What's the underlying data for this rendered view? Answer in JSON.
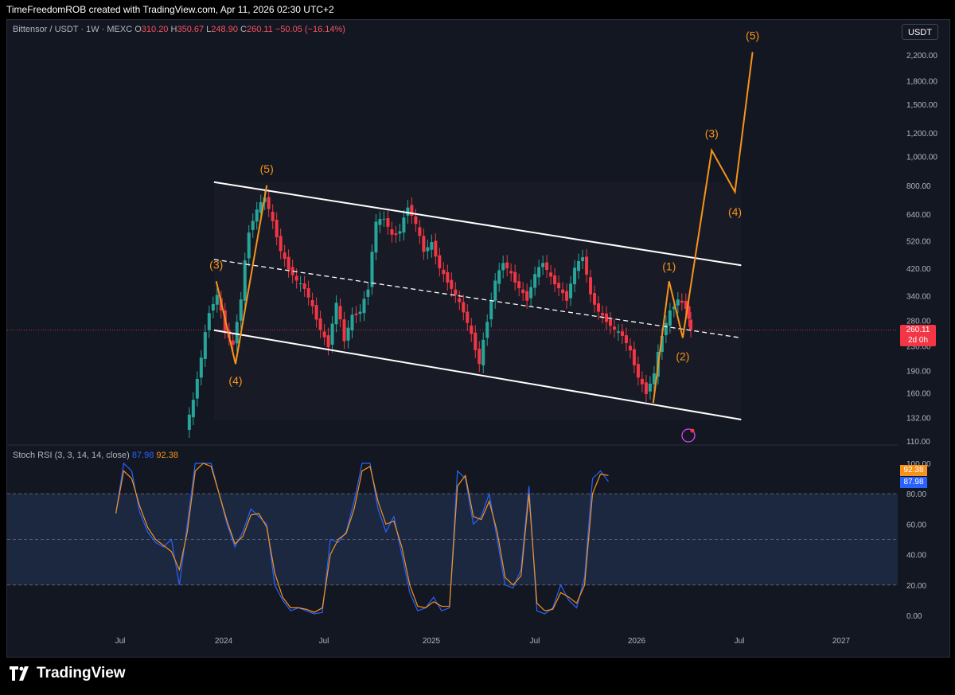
{
  "header": {
    "attribution": "TimeFreedomROB created with TradingView.com, Apr 11, 2026 02:30 UTC+2"
  },
  "legend": {
    "symbol": "Bittensor / USDT · 1W · MEXC",
    "open_label": "O",
    "open": "310.20",
    "high_label": "H",
    "high": "350.67",
    "low_label": "L",
    "low": "248.90",
    "close_label": "C",
    "close": "260.11",
    "change": "−50.05 (−16.14%)"
  },
  "currency": "USDT",
  "price_tag": {
    "price": "260.11",
    "countdown": "2d 0h"
  },
  "rsi": {
    "label": "Stoch RSI (3, 3, 14, 14, close)",
    "k": "87.98",
    "d": "92.38"
  },
  "brand": {
    "name": "TradingView"
  },
  "colors": {
    "up": "#26a69a",
    "down": "#f23645",
    "wave": "#f7931a",
    "k": "#2962ff",
    "d": "#f7931a"
  },
  "chart_data": [
    {
      "type": "line",
      "title": "Bittensor / USDT · 1W · MEXC",
      "scale": "log",
      "y_ticks": [
        110,
        132,
        160,
        190,
        230,
        280,
        340,
        420,
        520,
        640,
        800,
        1000,
        1200,
        1500,
        1800,
        2200
      ],
      "y_tick_labels": [
        "110.00",
        "132.00",
        "160.00",
        "190.00",
        "230.00",
        "280.00",
        "340.00",
        "420.00",
        "520.00",
        "640.00",
        "800.00",
        "1,000.00",
        "1,200.00",
        "1,500.00",
        "1,800.00",
        "2,200.00"
      ],
      "x_ticks": [
        "Jul",
        "2024",
        "Jul",
        "2025",
        "Jul",
        "2026",
        "Jul",
        "2027"
      ],
      "last_price": 260.11,
      "price_path": [
        [
          "2023-10-29",
          120
        ],
        [
          "2023-11-12",
          150
        ],
        [
          "2023-11-26",
          210
        ],
        [
          "2023-12-10",
          300
        ],
        [
          "2023-12-24",
          340
        ],
        [
          "2024-01-07",
          260
        ],
        [
          "2024-01-21",
          230
        ],
        [
          "2024-02-04",
          330
        ],
        [
          "2024-02-18",
          560
        ],
        [
          "2024-03-03",
          660
        ],
        [
          "2024-03-17",
          730
        ],
        [
          "2024-03-31",
          600
        ],
        [
          "2024-04-14",
          480
        ],
        [
          "2024-04-28",
          420
        ],
        [
          "2024-05-12",
          380
        ],
        [
          "2024-05-26",
          360
        ],
        [
          "2024-06-09",
          310
        ],
        [
          "2024-06-23",
          260
        ],
        [
          "2024-07-07",
          230
        ],
        [
          "2024-07-21",
          320
        ],
        [
          "2024-08-04",
          240
        ],
        [
          "2024-08-18",
          290
        ],
        [
          "2024-09-01",
          300
        ],
        [
          "2024-09-15",
          360
        ],
        [
          "2024-09-29",
          600
        ],
        [
          "2024-10-13",
          620
        ],
        [
          "2024-10-27",
          540
        ],
        [
          "2024-11-10",
          560
        ],
        [
          "2024-11-24",
          680
        ],
        [
          "2024-12-08",
          590
        ],
        [
          "2024-12-22",
          480
        ],
        [
          "2025-01-05",
          510
        ],
        [
          "2025-01-19",
          420
        ],
        [
          "2025-02-02",
          380
        ],
        [
          "2025-02-16",
          340
        ],
        [
          "2025-03-02",
          300
        ],
        [
          "2025-03-16",
          250
        ],
        [
          "2025-03-30",
          200
        ],
        [
          "2025-04-13",
          280
        ],
        [
          "2025-04-27",
          380
        ],
        [
          "2025-05-11",
          440
        ],
        [
          "2025-05-25",
          400
        ],
        [
          "2025-06-08",
          360
        ],
        [
          "2025-06-22",
          330
        ],
        [
          "2025-07-06",
          400
        ],
        [
          "2025-07-20",
          440
        ],
        [
          "2025-08-03",
          390
        ],
        [
          "2025-08-17",
          360
        ],
        [
          "2025-08-31",
          330
        ],
        [
          "2025-09-14",
          420
        ],
        [
          "2025-09-28",
          460
        ],
        [
          "2025-10-12",
          340
        ],
        [
          "2025-10-26",
          300
        ],
        [
          "2025-11-09",
          280
        ],
        [
          "2025-11-23",
          260
        ],
        [
          "2025-12-07",
          250
        ],
        [
          "2025-12-21",
          220
        ],
        [
          "2026-01-04",
          180
        ],
        [
          "2026-01-18",
          160
        ],
        [
          "2026-02-01",
          185
        ],
        [
          "2026-02-15",
          250
        ],
        [
          "2026-03-01",
          300
        ],
        [
          "2026-03-15",
          330
        ],
        [
          "2026-03-29",
          310
        ],
        [
          "2026-04-05",
          260
        ]
      ],
      "channel": {
        "upper": [
          [
            "2023-12-15",
            820
          ],
          [
            "2026-07-01",
            430
          ]
        ],
        "middle": [
          [
            "2023-12-15",
            450
          ],
          [
            "2026-07-01",
            245
          ]
        ],
        "lower": [
          [
            "2023-12-15",
            260
          ],
          [
            "2026-07-01",
            130
          ]
        ]
      },
      "elliott_wave": {
        "labels": [
          {
            "label": "(3)",
            "date": "2023-12-19",
            "price": 380
          },
          {
            "label": "(4)",
            "date": "2024-01-22",
            "price": 200
          },
          {
            "label": "(5)",
            "date": "2024-03-17",
            "price": 800
          },
          {
            "label": "(1)",
            "date": "2026-02-24",
            "price": 380
          },
          {
            "label": "(2)",
            "date": "2026-03-20",
            "price": 245
          },
          {
            "label": "(3)",
            "date": "2026-05-10",
            "price": 1050
          },
          {
            "label": "(4)",
            "date": "2026-06-20",
            "price": 760
          },
          {
            "label": "(5)",
            "date": "2026-07-21",
            "price": 2250
          }
        ],
        "path": [
          [
            "2023-12-19",
            380
          ],
          [
            "2024-01-22",
            200
          ],
          [
            "2024-03-17",
            800
          ],
          [
            "2026-01-27",
            148
          ],
          [
            "2026-02-24",
            380
          ],
          [
            "2026-03-20",
            245
          ],
          [
            "2026-05-10",
            1050
          ],
          [
            "2026-06-20",
            760
          ],
          [
            "2026-07-21",
            2250
          ]
        ]
      }
    },
    {
      "type": "line",
      "title": "Stoch RSI (3, 3, 14, 14, close)",
      "y_ticks": [
        0,
        20,
        40,
        60,
        80,
        100
      ],
      "y_tick_labels": [
        "0.00",
        "20.00",
        "40.00",
        "60.00",
        "80.00",
        "100.00"
      ],
      "band": [
        20,
        80
      ],
      "series": [
        {
          "name": "K",
          "color": "#2962ff",
          "points": [
            [
              "2023-06-25",
              67
            ],
            [
              "2023-07-09",
              100
            ],
            [
              "2023-07-23",
              95
            ],
            [
              "2023-08-06",
              68
            ],
            [
              "2023-08-20",
              55
            ],
            [
              "2023-09-03",
              48
            ],
            [
              "2023-09-17",
              45
            ],
            [
              "2023-10-01",
              50
            ],
            [
              "2023-10-15",
              20
            ],
            [
              "2023-10-29",
              60
            ],
            [
              "2023-11-12",
              100
            ],
            [
              "2023-11-26",
              100
            ],
            [
              "2023-12-10",
              100
            ],
            [
              "2024-01-07",
              60
            ],
            [
              "2024-01-21",
              45
            ],
            [
              "2024-02-04",
              55
            ],
            [
              "2024-02-18",
              70
            ],
            [
              "2024-03-03",
              65
            ],
            [
              "2024-03-17",
              60
            ],
            [
              "2024-03-31",
              20
            ],
            [
              "2024-04-14",
              10
            ],
            [
              "2024-04-28",
              3
            ],
            [
              "2024-05-12",
              5
            ],
            [
              "2024-05-26",
              3
            ],
            [
              "2024-06-09",
              1
            ],
            [
              "2024-06-23",
              2
            ],
            [
              "2024-07-07",
              50
            ],
            [
              "2024-07-21",
              48
            ],
            [
              "2024-08-04",
              55
            ],
            [
              "2024-08-18",
              75
            ],
            [
              "2024-09-01",
              100
            ],
            [
              "2024-09-15",
              100
            ],
            [
              "2024-09-29",
              70
            ],
            [
              "2024-10-13",
              55
            ],
            [
              "2024-10-27",
              65
            ],
            [
              "2024-11-10",
              40
            ],
            [
              "2024-11-24",
              15
            ],
            [
              "2024-12-08",
              3
            ],
            [
              "2024-12-22",
              5
            ],
            [
              "2025-01-05",
              12
            ],
            [
              "2025-01-19",
              3
            ],
            [
              "2025-02-02",
              5
            ],
            [
              "2025-02-16",
              95
            ],
            [
              "2025-03-02",
              90
            ],
            [
              "2025-03-16",
              60
            ],
            [
              "2025-03-30",
              65
            ],
            [
              "2025-04-13",
              80
            ],
            [
              "2025-04-27",
              50
            ],
            [
              "2025-05-11",
              20
            ],
            [
              "2025-05-25",
              18
            ],
            [
              "2025-06-08",
              30
            ],
            [
              "2025-06-22",
              85
            ],
            [
              "2025-07-06",
              3
            ],
            [
              "2025-07-20",
              1
            ],
            [
              "2025-08-03",
              5
            ],
            [
              "2025-08-17",
              20
            ],
            [
              "2025-08-31",
              10
            ],
            [
              "2025-09-14",
              5
            ],
            [
              "2025-09-28",
              25
            ],
            [
              "2025-10-12",
              90
            ],
            [
              "2025-10-26",
              95
            ],
            [
              "2025-11-09",
              88
            ]
          ]
        },
        {
          "name": "D",
          "color": "#f7931a",
          "points": [
            [
              "2023-06-25",
              67
            ],
            [
              "2023-07-09",
              95
            ],
            [
              "2023-07-23",
              90
            ],
            [
              "2023-08-06",
              72
            ],
            [
              "2023-08-20",
              58
            ],
            [
              "2023-09-03",
              50
            ],
            [
              "2023-09-17",
              46
            ],
            [
              "2023-10-01",
              42
            ],
            [
              "2023-10-15",
              30
            ],
            [
              "2023-10-29",
              55
            ],
            [
              "2023-11-12",
              95
            ],
            [
              "2023-11-26",
              100
            ],
            [
              "2023-12-10",
              98
            ],
            [
              "2024-01-07",
              62
            ],
            [
              "2024-01-21",
              47
            ],
            [
              "2024-02-04",
              52
            ],
            [
              "2024-02-18",
              66
            ],
            [
              "2024-03-03",
              67
            ],
            [
              "2024-03-17",
              58
            ],
            [
              "2024-03-31",
              28
            ],
            [
              "2024-04-14",
              12
            ],
            [
              "2024-04-28",
              5
            ],
            [
              "2024-05-12",
              5
            ],
            [
              "2024-05-26",
              4
            ],
            [
              "2024-06-09",
              2
            ],
            [
              "2024-06-23",
              5
            ],
            [
              "2024-07-07",
              40
            ],
            [
              "2024-07-21",
              50
            ],
            [
              "2024-08-04",
              54
            ],
            [
              "2024-08-18",
              70
            ],
            [
              "2024-09-01",
              95
            ],
            [
              "2024-09-15",
              98
            ],
            [
              "2024-09-29",
              75
            ],
            [
              "2024-10-13",
              60
            ],
            [
              "2024-10-27",
              62
            ],
            [
              "2024-11-10",
              45
            ],
            [
              "2024-11-24",
              20
            ],
            [
              "2024-12-08",
              6
            ],
            [
              "2024-12-22",
              5
            ],
            [
              "2025-01-05",
              9
            ],
            [
              "2025-01-19",
              6
            ],
            [
              "2025-02-02",
              6
            ],
            [
              "2025-02-16",
              85
            ],
            [
              "2025-03-02",
              92
            ],
            [
              "2025-03-16",
              65
            ],
            [
              "2025-03-30",
              63
            ],
            [
              "2025-04-13",
              75
            ],
            [
              "2025-04-27",
              55
            ],
            [
              "2025-05-11",
              25
            ],
            [
              "2025-05-25",
              20
            ],
            [
              "2025-06-08",
              26
            ],
            [
              "2025-06-22",
              80
            ],
            [
              "2025-07-06",
              8
            ],
            [
              "2025-07-20",
              3
            ],
            [
              "2025-08-03",
              4
            ],
            [
              "2025-08-17",
              15
            ],
            [
              "2025-08-31",
              12
            ],
            [
              "2025-09-14",
              8
            ],
            [
              "2025-09-28",
              20
            ],
            [
              "2025-10-12",
              80
            ],
            [
              "2025-10-26",
              93
            ],
            [
              "2025-11-09",
              92
            ]
          ]
        }
      ]
    }
  ]
}
